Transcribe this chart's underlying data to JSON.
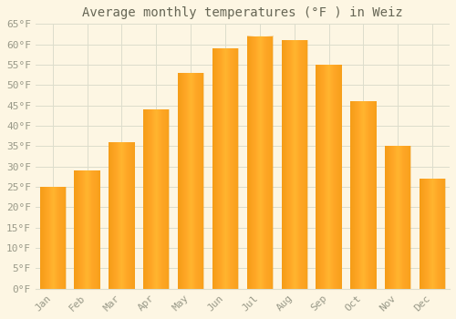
{
  "title": "Average monthly temperatures (°F ) in Weiz",
  "months": [
    "Jan",
    "Feb",
    "Mar",
    "Apr",
    "May",
    "Jun",
    "Jul",
    "Aug",
    "Sep",
    "Oct",
    "Nov",
    "Dec"
  ],
  "values": [
    25,
    29,
    36,
    44,
    53,
    59,
    62,
    61,
    55,
    46,
    35,
    27
  ],
  "bar_color_main": "#FFA726",
  "bar_color_light": "#FFD580",
  "bar_color_dark": "#F57C00",
  "ylim": [
    0,
    65
  ],
  "yticks": [
    0,
    5,
    10,
    15,
    20,
    25,
    30,
    35,
    40,
    45,
    50,
    55,
    60,
    65
  ],
  "background_color": "#fdf6e3",
  "plot_bg_color": "#fdf6e3",
  "grid_color": "#ddddcc",
  "title_fontsize": 10,
  "tick_fontsize": 8,
  "axis_color": "#999988"
}
